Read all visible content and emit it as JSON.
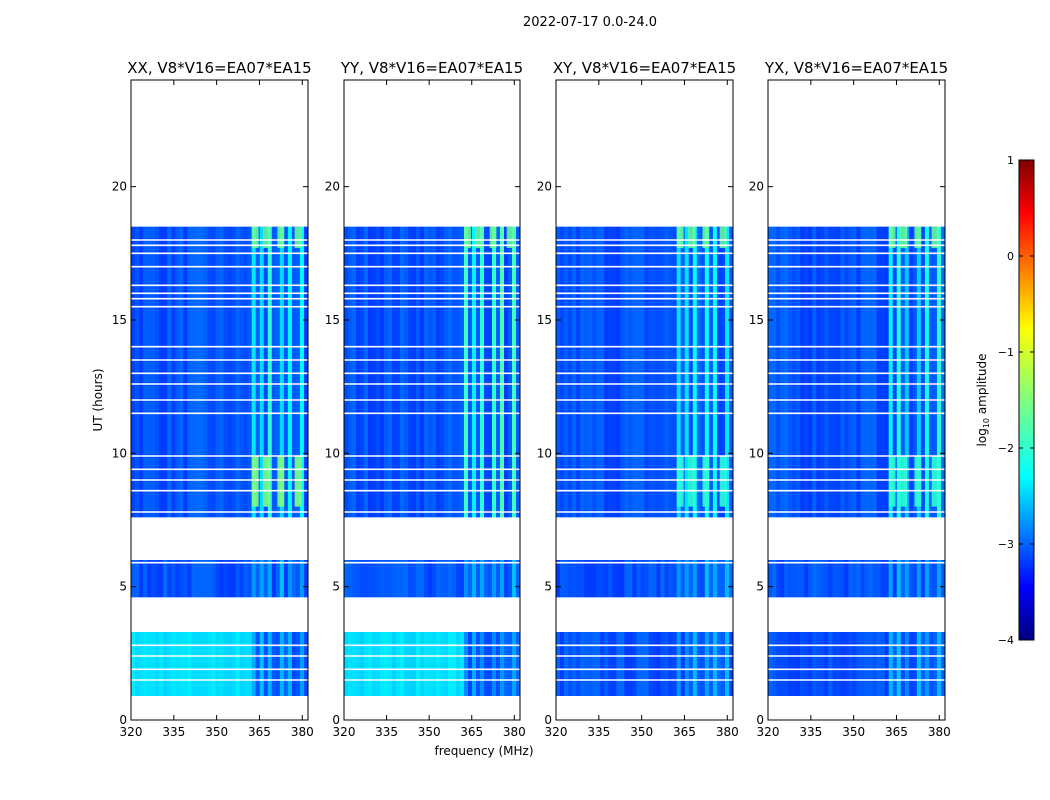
{
  "chart_data": {
    "type": "heatmap",
    "suptitle": "2022-07-17 0.0-24.0",
    "xlabel": "frequency (MHz)",
    "ylabel": "UT (hours)",
    "xlim": [
      320,
      382
    ],
    "ylim": [
      0,
      24
    ],
    "xticks": [
      320,
      335,
      350,
      365,
      380
    ],
    "yticks": [
      0,
      5,
      10,
      15,
      20
    ],
    "panels": [
      {
        "title": "XX, V8*V16=EA07*EA15",
        "pol": "XX"
      },
      {
        "title": "YY, V8*V16=EA07*EA15",
        "pol": "YY"
      },
      {
        "title": "XY, V8*V16=EA07*EA15",
        "pol": "XY"
      },
      {
        "title": "YX, V8*V16=EA07*EA15",
        "pol": "YX"
      }
    ],
    "colorbar": {
      "label": "log10 amplitude",
      "range": [
        -4,
        1
      ],
      "ticks": [
        1,
        0,
        -1,
        -2,
        -3,
        -4
      ],
      "tick_labels": [
        "1",
        "0",
        "−1",
        "−2",
        "−3",
        "−4"
      ],
      "colormap": "jet"
    },
    "data_segments_hours": [
      [
        0.9,
        3.3
      ],
      [
        4.6,
        6.0
      ],
      [
        7.6,
        18.5
      ]
    ],
    "flagged_lines_hours": [
      1.5,
      1.9,
      2.4,
      2.8,
      4.1,
      5.9,
      7.8,
      8.6,
      9.0,
      9.4,
      9.9,
      11.5,
      12.0,
      12.6,
      13.0,
      13.5,
      14.0,
      15.5,
      15.8,
      16.0,
      16.3,
      17.0,
      17.5,
      17.8,
      18.0
    ]
  }
}
